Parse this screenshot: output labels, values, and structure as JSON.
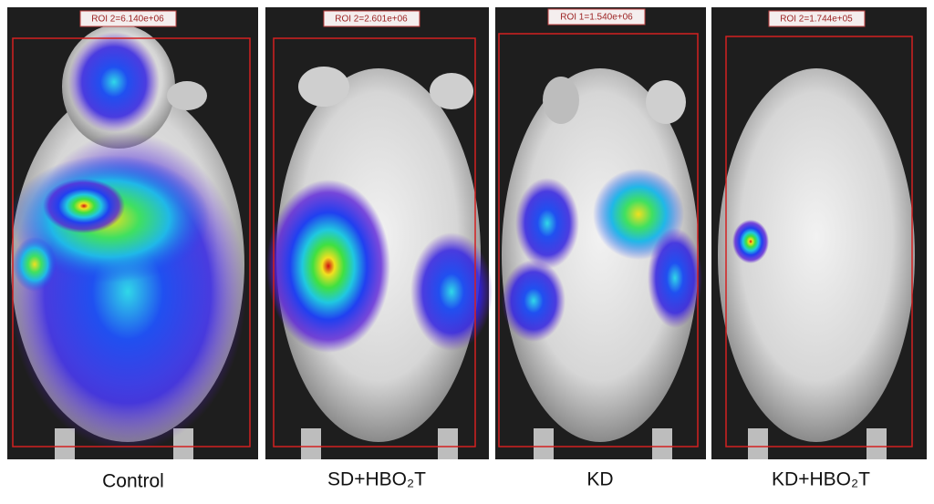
{
  "panels": [
    {
      "roi_label": "ROI 2=6.140e+06",
      "caption": "Control"
    },
    {
      "roi_label": "ROI 2=2.601e+06",
      "caption": "SD+HBO₂T"
    },
    {
      "roi_label": "ROI 1=1.540e+06",
      "caption": "KD"
    },
    {
      "roi_label": "ROI 2=1.744e+05",
      "caption": "KD+HBO₂T"
    }
  ]
}
